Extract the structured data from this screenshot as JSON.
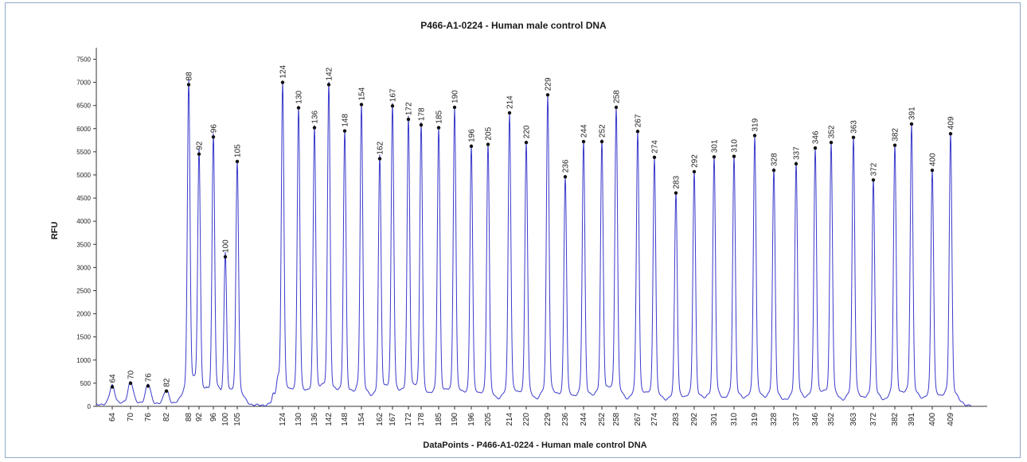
{
  "chart_data": {
    "type": "line",
    "title": "P466-A1-0224 - Human male control DNA",
    "xlabel": "DataPoints - P466-A1-0224 - Human male control DNA",
    "ylabel": "RFU",
    "ylim": [
      0,
      7800
    ],
    "yticks": [
      0,
      500,
      1000,
      1500,
      2000,
      2500,
      3000,
      3500,
      4000,
      4500,
      5000,
      5500,
      6000,
      6500,
      7000,
      7500
    ],
    "x_tick_labels": [
      "64",
      "70",
      "76",
      "82",
      "88",
      "92",
      "96",
      "100",
      "105",
      "124",
      "130",
      "136",
      "142",
      "148",
      "154",
      "162",
      "167",
      "172",
      "178",
      "185",
      "190",
      "196",
      "205",
      "214",
      "220",
      "229",
      "236",
      "244",
      "252",
      "258",
      "267",
      "274",
      "283",
      "292",
      "301",
      "310",
      "319",
      "328",
      "337",
      "346",
      "352",
      "363",
      "372",
      "382",
      "391",
      "400",
      "409"
    ],
    "series": [
      {
        "color": "#3a3acc",
        "peaks": [
          {
            "label": "64",
            "value": 420
          },
          {
            "label": "70",
            "value": 500
          },
          {
            "label": "76",
            "value": 440
          },
          {
            "label": "82",
            "value": 330
          },
          {
            "label": "88",
            "value": 6950
          },
          {
            "label": "92",
            "value": 5450
          },
          {
            "label": "96",
            "value": 5820
          },
          {
            "label": "100",
            "value": 3230
          },
          {
            "label": "105",
            "value": 5290
          },
          {
            "label": "124",
            "value": 7000
          },
          {
            "label": "130",
            "value": 6450
          },
          {
            "label": "136",
            "value": 6020
          },
          {
            "label": "142",
            "value": 6950
          },
          {
            "label": "148",
            "value": 5950
          },
          {
            "label": "154",
            "value": 6520
          },
          {
            "label": "162",
            "value": 5350
          },
          {
            "label": "167",
            "value": 6490
          },
          {
            "label": "172",
            "value": 6200
          },
          {
            "label": "178",
            "value": 6080
          },
          {
            "label": "185",
            "value": 6020
          },
          {
            "label": "190",
            "value": 6460
          },
          {
            "label": "196",
            "value": 5620
          },
          {
            "label": "205",
            "value": 5660
          },
          {
            "label": "214",
            "value": 6340
          },
          {
            "label": "220",
            "value": 5700
          },
          {
            "label": "229",
            "value": 6730
          },
          {
            "label": "236",
            "value": 4960
          },
          {
            "label": "244",
            "value": 5720
          },
          {
            "label": "252",
            "value": 5720
          },
          {
            "label": "258",
            "value": 6460
          },
          {
            "label": "267",
            "value": 5940
          },
          {
            "label": "274",
            "value": 5380
          },
          {
            "label": "283",
            "value": 4610
          },
          {
            "label": "292",
            "value": 5070
          },
          {
            "label": "301",
            "value": 5390
          },
          {
            "label": "310",
            "value": 5400
          },
          {
            "label": "319",
            "value": 5850
          },
          {
            "label": "328",
            "value": 5100
          },
          {
            "label": "337",
            "value": 5240
          },
          {
            "label": "346",
            "value": 5580
          },
          {
            "label": "352",
            "value": 5700
          },
          {
            "label": "363",
            "value": 5810
          },
          {
            "label": "372",
            "value": 4890
          },
          {
            "label": "382",
            "value": 5640
          },
          {
            "label": "391",
            "value": 6100
          },
          {
            "label": "400",
            "value": 5100
          },
          {
            "label": "409",
            "value": 5890
          }
        ]
      }
    ],
    "grid": false,
    "legend": "none"
  }
}
